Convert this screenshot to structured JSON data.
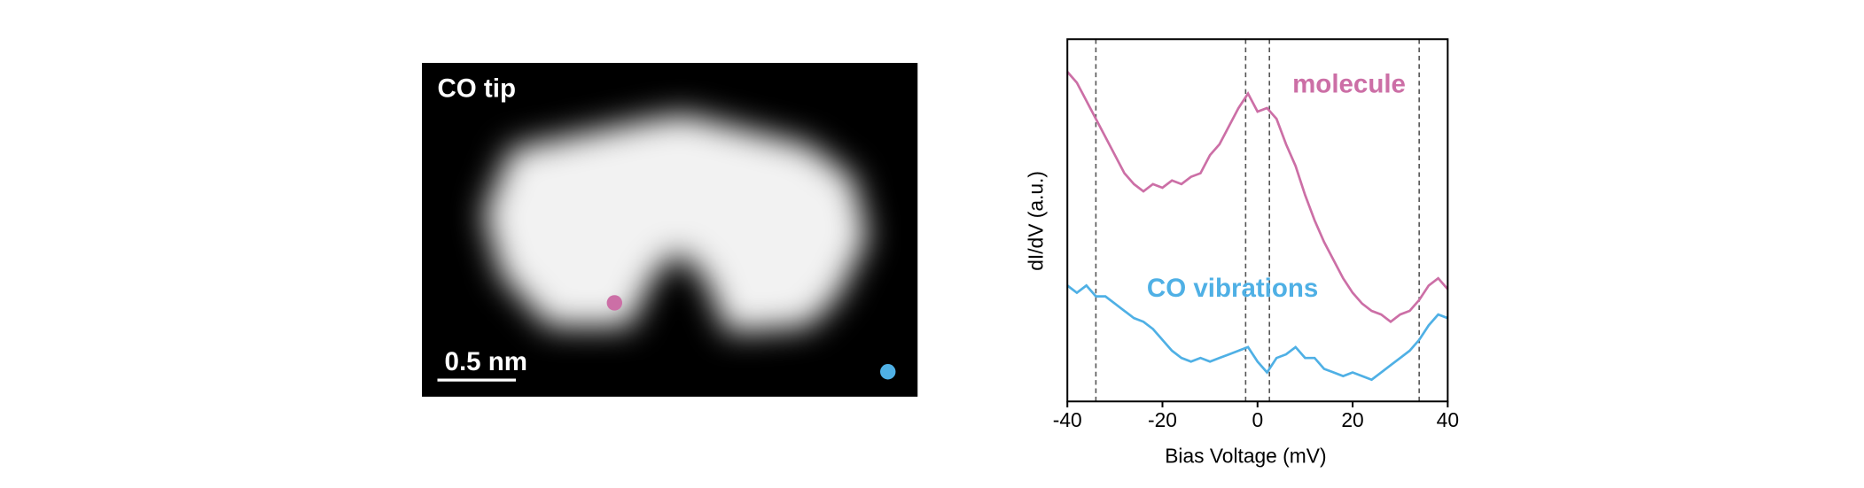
{
  "image": {
    "label": "CO tip",
    "scale_bar": "0.5 nm"
  },
  "chart_data": {
    "type": "line",
    "x_label": "Bias Voltage (mV)",
    "y_label": "dI/dV (a.u.)",
    "x": [
      -40,
      -38,
      -36,
      -34,
      -32,
      -30,
      -28,
      -26,
      -24,
      -22,
      -20,
      -18,
      -16,
      -14,
      -12,
      -10,
      -8,
      -6,
      -4,
      -2,
      0,
      2,
      4,
      6,
      8,
      10,
      12,
      14,
      16,
      18,
      20,
      22,
      24,
      26,
      28,
      30,
      32,
      34,
      36,
      38,
      40
    ],
    "series": [
      {
        "name": "molecule",
        "color": "#cc6fa6",
        "values": [
          9.1,
          8.8,
          8.3,
          7.8,
          7.3,
          6.8,
          6.3,
          6.0,
          5.8,
          6.0,
          5.9,
          6.1,
          6.0,
          6.2,
          6.3,
          6.8,
          7.1,
          7.6,
          8.1,
          8.5,
          8.0,
          8.1,
          7.8,
          7.1,
          6.5,
          5.7,
          5.0,
          4.4,
          3.9,
          3.4,
          3.0,
          2.7,
          2.5,
          2.4,
          2.2,
          2.4,
          2.5,
          2.8,
          3.2,
          3.4,
          3.1
        ]
      },
      {
        "name": "CO vibrations",
        "color": "#4fb0e5",
        "values": [
          3.2,
          3.0,
          3.2,
          2.9,
          2.9,
          2.7,
          2.5,
          2.3,
          2.2,
          2.0,
          1.7,
          1.4,
          1.2,
          1.1,
          1.2,
          1.1,
          1.2,
          1.3,
          1.4,
          1.5,
          1.1,
          0.8,
          1.2,
          1.3,
          1.5,
          1.2,
          1.2,
          0.9,
          0.8,
          0.7,
          0.8,
          0.7,
          0.6,
          0.8,
          1.0,
          1.2,
          1.4,
          1.7,
          2.1,
          2.4,
          2.3
        ]
      }
    ],
    "xlim": [
      -40,
      40
    ],
    "xticks": [
      -40,
      -20,
      0,
      20,
      40
    ],
    "ylim": [
      0,
      10
    ],
    "vlines": [
      -34,
      -2.5,
      2.5,
      34
    ]
  }
}
